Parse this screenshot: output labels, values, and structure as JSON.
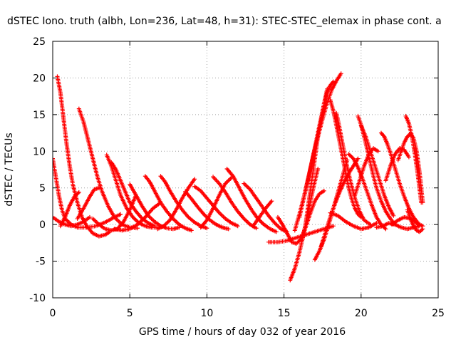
{
  "chart_data": {
    "type": "scatter",
    "title": "dSTEC Iono. truth (albh, Lon=236, Lat=48, h=31): STEC-STEC_elemax in phase cont. a",
    "xlabel": "GPS time / hours of day 032 of year 2016",
    "ylabel": "dSTEC  / TECUs",
    "xlim": [
      0,
      25
    ],
    "ylim": [
      -10,
      25
    ],
    "x_ticks": [
      "0",
      "5",
      "10",
      "15",
      "20",
      "25"
    ],
    "y_ticks": [
      "-10",
      "-5",
      "0",
      "5",
      "10",
      "15",
      "20",
      "25"
    ],
    "grid": true,
    "marker": "+",
    "color": "#ff0000",
    "series": [
      {
        "x": [
          0.0,
          0.2,
          0.4,
          0.6,
          0.8,
          1.2,
          1.6,
          2.2,
          2.8,
          3.4,
          4.0,
          4.4
        ],
        "values": [
          9.0,
          6.5,
          4.0,
          2.0,
          0.8,
          0.0,
          -0.4,
          -0.4,
          -0.2,
          0.3,
          1.0,
          1.4
        ]
      },
      {
        "x": [
          0.3,
          0.5,
          0.7,
          0.9,
          1.1,
          1.3,
          1.6,
          1.9,
          2.2,
          2.6,
          3.0,
          3.4,
          3.7
        ],
        "values": [
          20.2,
          18.0,
          14.5,
          11.0,
          8.0,
          5.5,
          3.0,
          1.0,
          -0.2,
          -1.2,
          -1.6,
          -1.4,
          -1.0
        ]
      },
      {
        "x": [
          0.0,
          0.4,
          0.8,
          1.2,
          1.6,
          2.0,
          2.4
        ],
        "values": [
          1.0,
          0.4,
          0.0,
          -0.2,
          0.0,
          0.4,
          1.0
        ]
      },
      {
        "x": [
          0.5,
          0.8,
          1.1,
          1.4,
          1.7
        ],
        "values": [
          -0.2,
          1.0,
          2.6,
          3.8,
          4.4
        ]
      },
      {
        "x": [
          1.6,
          2.0,
          2.4,
          2.7,
          3.0
        ],
        "values": [
          0.8,
          2.2,
          3.8,
          4.8,
          5.0
        ]
      },
      {
        "x": [
          1.7,
          2.0,
          2.3,
          2.6,
          2.9,
          3.2,
          3.6,
          4.0,
          4.5,
          5.0,
          5.5
        ],
        "values": [
          15.8,
          14.0,
          11.5,
          9.0,
          6.5,
          4.5,
          2.5,
          1.0,
          0.0,
          -0.4,
          -0.5
        ]
      },
      {
        "x": [
          3.5,
          3.8,
          4.1,
          4.4,
          4.8,
          5.2,
          5.6,
          6.0,
          6.4,
          6.8
        ],
        "values": [
          9.5,
          8.0,
          6.0,
          4.0,
          2.2,
          1.0,
          0.2,
          -0.2,
          -0.4,
          -0.4
        ]
      },
      {
        "x": [
          3.8,
          4.1,
          4.4,
          4.7,
          5.0,
          5.4,
          5.8,
          6.2,
          6.6
        ],
        "values": [
          8.5,
          7.5,
          6.0,
          4.5,
          3.0,
          1.8,
          0.8,
          0.2,
          -0.2
        ]
      },
      {
        "x": [
          2.6,
          3.0,
          3.4,
          3.8,
          4.2,
          4.6,
          5.0,
          5.4
        ],
        "values": [
          0.8,
          0.0,
          -0.6,
          -0.8,
          -0.6,
          0.4,
          2.0,
          4.0
        ]
      },
      {
        "x": [
          4.0,
          4.5,
          5.0,
          5.5,
          6.0,
          6.5,
          7.0
        ],
        "values": [
          -0.6,
          -0.8,
          -0.6,
          0.0,
          1.0,
          2.2,
          3.0
        ]
      },
      {
        "x": [
          5.0,
          5.4,
          5.8,
          6.2,
          6.6,
          7.0,
          7.4,
          7.8,
          8.2
        ],
        "values": [
          5.5,
          4.0,
          2.5,
          1.2,
          0.4,
          -0.2,
          -0.5,
          -0.6,
          -0.4
        ]
      },
      {
        "x": [
          6.0,
          6.3,
          6.6,
          7.0,
          7.4,
          7.8,
          8.2,
          8.6,
          9.0
        ],
        "values": [
          6.6,
          5.8,
          4.6,
          3.0,
          1.8,
          0.8,
          0.0,
          -0.5,
          -0.8
        ]
      },
      {
        "x": [
          7.0,
          7.3,
          7.6,
          8.0,
          8.4,
          8.8,
          9.2,
          9.6,
          10.0
        ],
        "values": [
          6.6,
          5.8,
          4.6,
          3.2,
          2.0,
          1.0,
          0.3,
          -0.2,
          -0.5
        ]
      },
      {
        "x": [
          6.8,
          7.2,
          7.6,
          8.0,
          8.4,
          8.8,
          9.2
        ],
        "values": [
          -0.6,
          -0.2,
          0.6,
          2.0,
          3.6,
          5.0,
          6.2
        ]
      },
      {
        "x": [
          8.6,
          9.0,
          9.4,
          9.8,
          10.2,
          10.6,
          11.0,
          11.4
        ],
        "values": [
          4.5,
          3.5,
          2.4,
          1.4,
          0.6,
          0.0,
          -0.4,
          -0.6
        ]
      },
      {
        "x": [
          9.2,
          9.6,
          10.0,
          10.4,
          10.8,
          11.2,
          11.6,
          12.0
        ],
        "values": [
          5.2,
          4.6,
          3.6,
          2.6,
          1.6,
          0.8,
          0.2,
          -0.2
        ]
      },
      {
        "x": [
          9.6,
          10.0,
          10.4,
          10.8,
          11.2,
          11.6
        ],
        "values": [
          -0.4,
          0.6,
          2.2,
          4.0,
          5.6,
          6.4
        ]
      },
      {
        "x": [
          10.4,
          10.8,
          11.2,
          11.6,
          12.0,
          12.4,
          12.8,
          13.2
        ],
        "values": [
          6.5,
          5.6,
          4.4,
          3.0,
          1.8,
          0.8,
          0.0,
          -0.5
        ]
      },
      {
        "x": [
          11.3,
          11.7,
          12.1,
          12.5,
          12.9,
          13.3,
          13.7,
          14.1,
          14.5
        ],
        "values": [
          7.6,
          6.6,
          5.0,
          3.4,
          2.0,
          0.8,
          0.0,
          -0.6,
          -1.0
        ]
      },
      {
        "x": [
          12.4,
          12.8,
          13.2,
          13.6,
          14.0,
          14.4,
          14.8,
          15.2
        ],
        "values": [
          5.6,
          4.8,
          3.6,
          2.4,
          1.2,
          0.2,
          -0.6,
          -1.0
        ]
      },
      {
        "x": [
          13.0,
          13.4,
          13.8,
          14.2
        ],
        "values": [
          -0.2,
          1.0,
          2.2,
          3.2
        ]
      },
      {
        "x": [
          14.0,
          14.6,
          15.2,
          15.8,
          16.4,
          17.0,
          17.6,
          18.2
        ],
        "values": [
          -2.4,
          -2.4,
          -2.2,
          -1.8,
          -1.4,
          -1.0,
          -0.6,
          -0.2
        ]
      },
      {
        "x": [
          14.6,
          14.9,
          15.2,
          15.5,
          15.8,
          16.1,
          16.4,
          16.7,
          17.0,
          17.3,
          17.6
        ],
        "values": [
          1.0,
          0.0,
          -1.2,
          -2.4,
          -2.6,
          -2.0,
          -0.4,
          1.5,
          3.2,
          4.2,
          4.6
        ]
      },
      {
        "x": [
          15.4,
          15.7,
          16.0,
          16.3,
          16.6,
          16.9,
          17.2
        ],
        "values": [
          -7.6,
          -6.0,
          -3.8,
          -1.0,
          2.0,
          5.0,
          7.6
        ]
      },
      {
        "x": [
          15.7,
          16.0,
          16.3,
          16.6,
          16.9,
          17.2,
          17.5,
          17.8
        ],
        "values": [
          -0.8,
          1.4,
          3.8,
          6.5,
          9.5,
          12.5,
          15.5,
          18.5
        ]
      },
      {
        "x": [
          16.2,
          16.4,
          16.6,
          16.8,
          17.0,
          17.2,
          17.4,
          17.6,
          17.8,
          18.0,
          18.2
        ],
        "values": [
          -2.0,
          0.0,
          3.0,
          6.0,
          9.0,
          12.0,
          14.0,
          16.5,
          18.0,
          19.0,
          19.5
        ]
      },
      {
        "x": [
          16.0,
          16.3,
          16.6,
          16.9,
          17.2,
          17.5,
          17.8,
          18.1,
          18.4,
          18.7
        ],
        "values": [
          1.0,
          3.8,
          6.6,
          9.4,
          12.0,
          14.4,
          16.6,
          18.4,
          19.6,
          20.6
        ]
      },
      {
        "x": [
          17.0,
          17.3,
          17.6,
          17.9,
          18.2,
          18.5,
          18.8,
          19.1
        ],
        "values": [
          -4.8,
          -3.6,
          -2.0,
          0.0,
          2.2,
          4.4,
          6.6,
          8.8
        ]
      },
      {
        "x": [
          17.4,
          17.7,
          18.0,
          18.3,
          18.6,
          18.9,
          19.2,
          19.5,
          19.8
        ],
        "values": [
          -3.0,
          -1.0,
          1.0,
          2.8,
          4.4,
          5.8,
          7.0,
          8.0,
          9.0
        ]
      },
      {
        "x": [
          18.0,
          18.2,
          18.4,
          18.6,
          18.8,
          19.0,
          19.2,
          19.4,
          19.6,
          19.8,
          20.0
        ],
        "values": [
          17.0,
          15.5,
          13.5,
          11.4,
          9.2,
          7.0,
          5.0,
          3.4,
          2.2,
          1.4,
          1.0
        ]
      },
      {
        "x": [
          18.4,
          18.6,
          18.8,
          19.0,
          19.3,
          19.6,
          19.9,
          20.2,
          20.6
        ],
        "values": [
          15.2,
          13.2,
          11.0,
          8.8,
          6.0,
          3.6,
          1.8,
          0.6,
          0.0
        ]
      },
      {
        "x": [
          18.0,
          18.5,
          19.0,
          19.5,
          20.0,
          20.5,
          21.0
        ],
        "values": [
          1.6,
          1.2,
          0.4,
          -0.2,
          -0.6,
          -0.4,
          0.2
        ]
      },
      {
        "x": [
          19.2,
          19.5,
          19.8,
          20.1,
          20.4,
          20.7,
          21.0,
          21.3,
          21.6
        ],
        "values": [
          9.6,
          9.0,
          7.8,
          6.2,
          4.4,
          2.6,
          1.0,
          0.0,
          -0.6
        ]
      },
      {
        "x": [
          19.6,
          19.9,
          20.2,
          20.5,
          20.8,
          21.1
        ],
        "values": [
          4.0,
          6.0,
          8.0,
          9.6,
          10.4,
          10.0
        ]
      },
      {
        "x": [
          19.8,
          20.0,
          20.2,
          20.4,
          20.6,
          20.8,
          21.0,
          21.3,
          21.6,
          21.9,
          22.2
        ],
        "values": [
          14.8,
          13.6,
          12.0,
          10.2,
          8.4,
          6.6,
          5.0,
          3.2,
          1.8,
          0.8,
          0.0
        ]
      },
      {
        "x": [
          20.0,
          20.3,
          20.6,
          20.9,
          21.2,
          21.5,
          21.8,
          22.1
        ],
        "values": [
          13.5,
          12.0,
          10.0,
          8.0,
          6.0,
          4.0,
          2.4,
          1.2
        ]
      },
      {
        "x": [
          21.0,
          21.4,
          21.8,
          22.2,
          22.6,
          23.0,
          23.4,
          23.8
        ],
        "values": [
          -0.4,
          -0.2,
          0.2,
          0.0,
          -0.4,
          -0.6,
          -0.4,
          -0.2
        ]
      },
      {
        "x": [
          21.3,
          21.5,
          21.7,
          21.9,
          22.1,
          22.3,
          22.5,
          22.8,
          23.1,
          23.4,
          23.7
        ],
        "values": [
          12.5,
          12.0,
          11.0,
          9.8,
          8.4,
          7.0,
          5.6,
          3.8,
          2.2,
          1.0,
          0.2
        ]
      },
      {
        "x": [
          21.6,
          21.9,
          22.2,
          22.5,
          22.8,
          23.1
        ],
        "values": [
          6.0,
          8.0,
          9.6,
          10.4,
          10.2,
          9.2
        ]
      },
      {
        "x": [
          22.4,
          22.6,
          22.8,
          23.0,
          23.2,
          23.4,
          23.6,
          23.8,
          24.0
        ],
        "values": [
          8.8,
          10.0,
          11.2,
          12.0,
          12.4,
          11.8,
          10.0,
          7.0,
          3.0
        ]
      },
      {
        "x": [
          22.9,
          23.1,
          23.3,
          23.5,
          23.7,
          23.9
        ],
        "values": [
          14.8,
          13.8,
          12.0,
          9.5,
          6.5,
          3.0
        ]
      },
      {
        "x": [
          23.0,
          23.2,
          23.4,
          23.6,
          23.8,
          24.0
        ],
        "values": [
          2.0,
          0.8,
          -0.2,
          -0.8,
          -1.0,
          -0.6
        ]
      },
      {
        "x": [
          22.0,
          22.4,
          22.8,
          23.2,
          23.6,
          24.0
        ],
        "values": [
          0.0,
          0.6,
          1.0,
          0.8,
          0.2,
          -0.2
        ]
      }
    ]
  }
}
